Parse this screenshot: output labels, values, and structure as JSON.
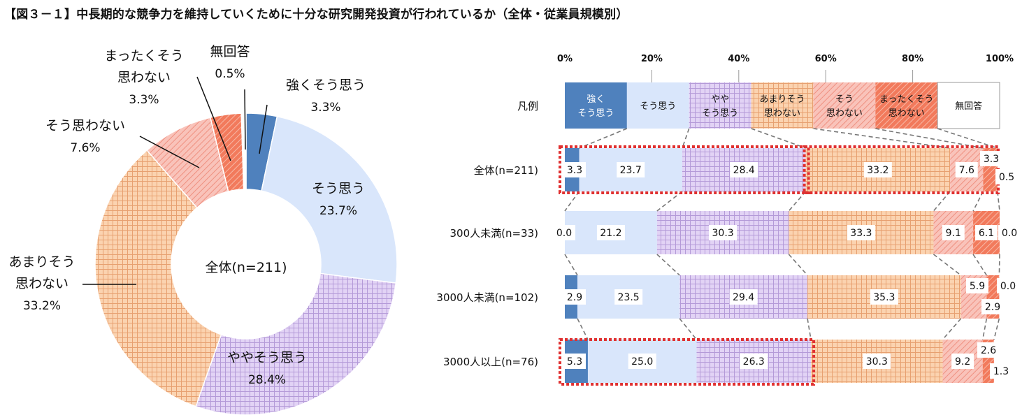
{
  "title": "【図３－１】中長期的な競争力を維持していくために十分な研究開発投資が行われているか（全体・従業員規模別）",
  "colors": {
    "strongly_agree": "#4f81bd",
    "agree": "#d9e6fb",
    "somewhat_agree": "#dccbf1",
    "somewhat_disagree": "#f9c9a0",
    "disagree": "#f6b2a8",
    "strongly_disagree": "#f27a5c",
    "no_answer": "#ffffff",
    "highlight": "#e03030"
  },
  "chart_data": [
    {
      "type": "pie",
      "center_label": "全体(n=211)",
      "categories": [
        "強くそう思う",
        "そう思う",
        "ややそう思う",
        "あまりそう思わない",
        "そう思わない",
        "まったくそう思わない",
        "無回答"
      ],
      "values": [
        3.3,
        23.7,
        28.4,
        33.2,
        7.6,
        3.3,
        0.5
      ],
      "slice_labels": [
        {
          "lines": [
            "強くそう思う"
          ],
          "value": "3.3%"
        },
        {
          "lines": [
            "そう思う"
          ],
          "value": "23.7%"
        },
        {
          "lines": [
            "ややそう思う"
          ],
          "value": "28.4%"
        },
        {
          "lines": [
            "あまりそう",
            "思わない"
          ],
          "value": "33.2%"
        },
        {
          "lines": [
            "そう思わない"
          ],
          "value": "7.6%"
        },
        {
          "lines": [
            "まったくそう",
            "思わない"
          ],
          "value": "3.3%"
        },
        {
          "lines": [
            "無回答"
          ],
          "value": "0.5%"
        }
      ]
    },
    {
      "type": "bar",
      "orientation": "horizontal-stacked-100",
      "x_ticks": [
        "0%",
        "20%",
        "40%",
        "60%",
        "80%",
        "100%"
      ],
      "xlim": [
        0,
        100
      ],
      "legend_row_label": "凡例",
      "legend": [
        {
          "lines": [
            "強く",
            "そう思う"
          ]
        },
        {
          "lines": [
            "そう思う"
          ]
        },
        {
          "lines": [
            "やや",
            "そう思う"
          ]
        },
        {
          "lines": [
            "あまりそう",
            "思わない"
          ]
        },
        {
          "lines": [
            "そう",
            "思わない"
          ]
        },
        {
          "lines": [
            "まったくそう",
            "思わない"
          ]
        },
        {
          "lines": [
            "無回答"
          ]
        }
      ],
      "categories": [
        "全体(n=211)",
        "300人未満(n=33)",
        "3000人未満(n=102)",
        "3000人以上(n=76)"
      ],
      "series": [
        {
          "name": "強くそう思う",
          "values": [
            3.3,
            0.0,
            2.9,
            5.3
          ]
        },
        {
          "name": "そう思う",
          "values": [
            23.7,
            21.2,
            23.5,
            25.0
          ]
        },
        {
          "name": "ややそう思う",
          "values": [
            28.4,
            30.3,
            29.4,
            26.3
          ]
        },
        {
          "name": "あまりそう思わない",
          "values": [
            33.2,
            33.3,
            35.3,
            30.3
          ]
        },
        {
          "name": "そう思わない",
          "values": [
            7.6,
            9.1,
            5.9,
            9.2
          ]
        },
        {
          "name": "まったくそう思わない",
          "values": [
            3.3,
            6.1,
            2.9,
            2.6
          ]
        },
        {
          "name": "無回答",
          "values": [
            0.5,
            0.0,
            0.0,
            1.3
          ]
        }
      ],
      "value_labels": [
        [
          "3.3",
          "23.7",
          "28.4",
          "33.2",
          "7.6",
          "3.3",
          "0.5"
        ],
        [
          "0.0",
          "21.2",
          "30.3",
          "33.3",
          "9.1",
          "6.1",
          "0.0"
        ],
        [
          "2.9",
          "23.5",
          "29.4",
          "35.3",
          "5.9",
          "2.9",
          "0.0"
        ],
        [
          "5.3",
          "25.0",
          "26.3",
          "30.3",
          "9.2",
          "2.6",
          "1.3"
        ]
      ]
    }
  ]
}
